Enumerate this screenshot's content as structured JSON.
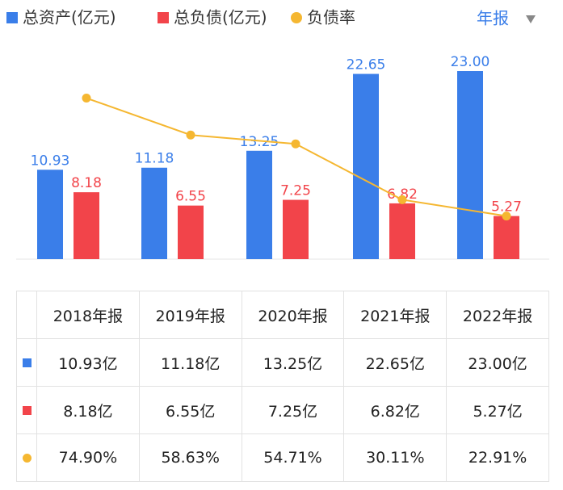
{
  "chart_data": {
    "type": "bar",
    "series": [
      {
        "name": "总资产(亿元)",
        "color": "#3a7ee9",
        "values": [
          10.93,
          11.18,
          13.25,
          22.65,
          23.0
        ],
        "value_labels": [
          "10.93",
          "11.18",
          "13.25",
          "22.65",
          "23.00"
        ]
      },
      {
        "name": "总负债(亿元)",
        "color": "#f2444a",
        "values": [
          8.18,
          6.55,
          7.25,
          6.82,
          5.27
        ]
      },
      {
        "name": "负债率",
        "type": "line",
        "color": "#f5b731",
        "values": [
          74.9,
          58.63,
          54.71,
          30.11,
          22.91
        ]
      }
    ]
  },
  "period_selector": "年报",
  "table": {
    "header": [
      "2018年报",
      "2019年报",
      "2020年报",
      "2021年报",
      "2022年报"
    ],
    "rows": [
      [
        "10.93亿",
        "11.18亿",
        "13.25亿",
        "22.65亿",
        "23.00亿"
      ],
      [
        "8.18亿",
        "6.55亿",
        "7.25亿",
        "6.82亿",
        "5.27亿"
      ],
      [
        "74.90%",
        "58.63%",
        "54.71%",
        "30.11%",
        "22.91%"
      ]
    ]
  }
}
